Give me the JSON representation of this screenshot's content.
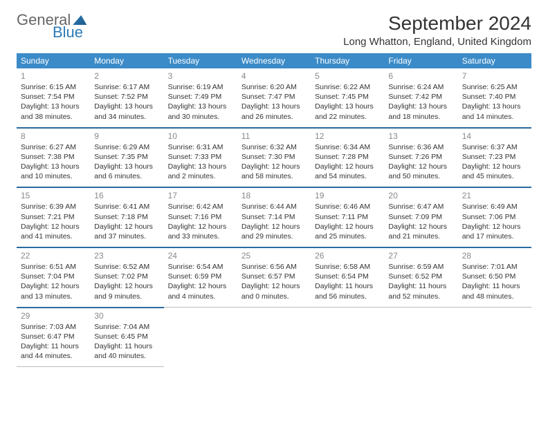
{
  "brand": {
    "general": "General",
    "blue": "Blue"
  },
  "header": {
    "month_title": "September 2024",
    "location": "Long Whatton, England, United Kingdom"
  },
  "weekdays": [
    "Sunday",
    "Monday",
    "Tuesday",
    "Wednesday",
    "Thursday",
    "Friday",
    "Saturday"
  ],
  "colors": {
    "header_bg": "#3b8bc8",
    "cell_border_top": "#2a6a9e",
    "logo_blue": "#2a7ab8",
    "logo_gray": "#666666"
  },
  "weeks": [
    [
      {
        "day": "1",
        "sunrise": "Sunrise: 6:15 AM",
        "sunset": "Sunset: 7:54 PM",
        "daylight": "Daylight: 13 hours and 38 minutes."
      },
      {
        "day": "2",
        "sunrise": "Sunrise: 6:17 AM",
        "sunset": "Sunset: 7:52 PM",
        "daylight": "Daylight: 13 hours and 34 minutes."
      },
      {
        "day": "3",
        "sunrise": "Sunrise: 6:19 AM",
        "sunset": "Sunset: 7:49 PM",
        "daylight": "Daylight: 13 hours and 30 minutes."
      },
      {
        "day": "4",
        "sunrise": "Sunrise: 6:20 AM",
        "sunset": "Sunset: 7:47 PM",
        "daylight": "Daylight: 13 hours and 26 minutes."
      },
      {
        "day": "5",
        "sunrise": "Sunrise: 6:22 AM",
        "sunset": "Sunset: 7:45 PM",
        "daylight": "Daylight: 13 hours and 22 minutes."
      },
      {
        "day": "6",
        "sunrise": "Sunrise: 6:24 AM",
        "sunset": "Sunset: 7:42 PM",
        "daylight": "Daylight: 13 hours and 18 minutes."
      },
      {
        "day": "7",
        "sunrise": "Sunrise: 6:25 AM",
        "sunset": "Sunset: 7:40 PM",
        "daylight": "Daylight: 13 hours and 14 minutes."
      }
    ],
    [
      {
        "day": "8",
        "sunrise": "Sunrise: 6:27 AM",
        "sunset": "Sunset: 7:38 PM",
        "daylight": "Daylight: 13 hours and 10 minutes."
      },
      {
        "day": "9",
        "sunrise": "Sunrise: 6:29 AM",
        "sunset": "Sunset: 7:35 PM",
        "daylight": "Daylight: 13 hours and 6 minutes."
      },
      {
        "day": "10",
        "sunrise": "Sunrise: 6:31 AM",
        "sunset": "Sunset: 7:33 PM",
        "daylight": "Daylight: 13 hours and 2 minutes."
      },
      {
        "day": "11",
        "sunrise": "Sunrise: 6:32 AM",
        "sunset": "Sunset: 7:30 PM",
        "daylight": "Daylight: 12 hours and 58 minutes."
      },
      {
        "day": "12",
        "sunrise": "Sunrise: 6:34 AM",
        "sunset": "Sunset: 7:28 PM",
        "daylight": "Daylight: 12 hours and 54 minutes."
      },
      {
        "day": "13",
        "sunrise": "Sunrise: 6:36 AM",
        "sunset": "Sunset: 7:26 PM",
        "daylight": "Daylight: 12 hours and 50 minutes."
      },
      {
        "day": "14",
        "sunrise": "Sunrise: 6:37 AM",
        "sunset": "Sunset: 7:23 PM",
        "daylight": "Daylight: 12 hours and 45 minutes."
      }
    ],
    [
      {
        "day": "15",
        "sunrise": "Sunrise: 6:39 AM",
        "sunset": "Sunset: 7:21 PM",
        "daylight": "Daylight: 12 hours and 41 minutes."
      },
      {
        "day": "16",
        "sunrise": "Sunrise: 6:41 AM",
        "sunset": "Sunset: 7:18 PM",
        "daylight": "Daylight: 12 hours and 37 minutes."
      },
      {
        "day": "17",
        "sunrise": "Sunrise: 6:42 AM",
        "sunset": "Sunset: 7:16 PM",
        "daylight": "Daylight: 12 hours and 33 minutes."
      },
      {
        "day": "18",
        "sunrise": "Sunrise: 6:44 AM",
        "sunset": "Sunset: 7:14 PM",
        "daylight": "Daylight: 12 hours and 29 minutes."
      },
      {
        "day": "19",
        "sunrise": "Sunrise: 6:46 AM",
        "sunset": "Sunset: 7:11 PM",
        "daylight": "Daylight: 12 hours and 25 minutes."
      },
      {
        "day": "20",
        "sunrise": "Sunrise: 6:47 AM",
        "sunset": "Sunset: 7:09 PM",
        "daylight": "Daylight: 12 hours and 21 minutes."
      },
      {
        "day": "21",
        "sunrise": "Sunrise: 6:49 AM",
        "sunset": "Sunset: 7:06 PM",
        "daylight": "Daylight: 12 hours and 17 minutes."
      }
    ],
    [
      {
        "day": "22",
        "sunrise": "Sunrise: 6:51 AM",
        "sunset": "Sunset: 7:04 PM",
        "daylight": "Daylight: 12 hours and 13 minutes."
      },
      {
        "day": "23",
        "sunrise": "Sunrise: 6:52 AM",
        "sunset": "Sunset: 7:02 PM",
        "daylight": "Daylight: 12 hours and 9 minutes."
      },
      {
        "day": "24",
        "sunrise": "Sunrise: 6:54 AM",
        "sunset": "Sunset: 6:59 PM",
        "daylight": "Daylight: 12 hours and 4 minutes."
      },
      {
        "day": "25",
        "sunrise": "Sunrise: 6:56 AM",
        "sunset": "Sunset: 6:57 PM",
        "daylight": "Daylight: 12 hours and 0 minutes."
      },
      {
        "day": "26",
        "sunrise": "Sunrise: 6:58 AM",
        "sunset": "Sunset: 6:54 PM",
        "daylight": "Daylight: 11 hours and 56 minutes."
      },
      {
        "day": "27",
        "sunrise": "Sunrise: 6:59 AM",
        "sunset": "Sunset: 6:52 PM",
        "daylight": "Daylight: 11 hours and 52 minutes."
      },
      {
        "day": "28",
        "sunrise": "Sunrise: 7:01 AM",
        "sunset": "Sunset: 6:50 PM",
        "daylight": "Daylight: 11 hours and 48 minutes."
      }
    ],
    [
      {
        "day": "29",
        "sunrise": "Sunrise: 7:03 AM",
        "sunset": "Sunset: 6:47 PM",
        "daylight": "Daylight: 11 hours and 44 minutes."
      },
      {
        "day": "30",
        "sunrise": "Sunrise: 7:04 AM",
        "sunset": "Sunset: 6:45 PM",
        "daylight": "Daylight: 11 hours and 40 minutes."
      },
      null,
      null,
      null,
      null,
      null
    ]
  ]
}
